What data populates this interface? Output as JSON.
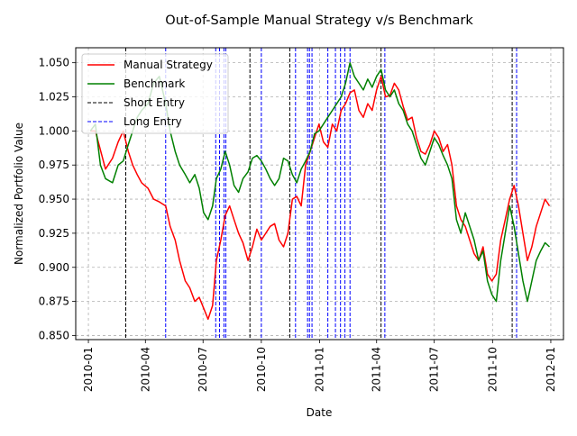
{
  "chart_data": {
    "type": "line",
    "title": "Out-of-Sample Manual Strategy v/s Benchmark",
    "xlabel": "Date",
    "ylabel": "Normalized Portfolio Value",
    "xlim": [
      "2009-12-12",
      "2012-01-21"
    ],
    "ylim": [
      0.847,
      1.061
    ],
    "grid": true,
    "legend_position": "top-left",
    "x_ticks": [
      "2010-01",
      "2010-04",
      "2010-07",
      "2010-10",
      "2011-01",
      "2011-04",
      "2011-07",
      "2011-10",
      "2012-01"
    ],
    "y_ticks": [
      "0.850",
      "0.875",
      "0.900",
      "0.925",
      "0.950",
      "0.975",
      "1.000",
      "1.025",
      "1.050"
    ],
    "colors": {
      "manual": "#ff0000",
      "benchmark": "#008000",
      "short_entry": "#000000",
      "long_entry": "#0000ff",
      "grid": "#b0b0b0"
    },
    "series": [
      {
        "name": "Manual Strategy",
        "points": [
          [
            "2010-01-04",
            1.0
          ],
          [
            "2010-01-12",
            1.0
          ],
          [
            "2010-01-20",
            0.986
          ],
          [
            "2010-01-28",
            0.972
          ],
          [
            "2010-02-08",
            0.98
          ],
          [
            "2010-02-17",
            0.992
          ],
          [
            "2010-02-25",
            1.0
          ],
          [
            "2010-03-05",
            0.985
          ],
          [
            "2010-03-12",
            0.975
          ],
          [
            "2010-03-19",
            0.968
          ],
          [
            "2010-03-26",
            0.962
          ],
          [
            "2010-04-05",
            0.958
          ],
          [
            "2010-04-14",
            0.95
          ],
          [
            "2010-04-23",
            0.948
          ],
          [
            "2010-05-03",
            0.945
          ],
          [
            "2010-05-10",
            0.93
          ],
          [
            "2010-05-18",
            0.92
          ],
          [
            "2010-05-25",
            0.905
          ],
          [
            "2010-06-03",
            0.89
          ],
          [
            "2010-06-10",
            0.885
          ],
          [
            "2010-06-18",
            0.875
          ],
          [
            "2010-06-25",
            0.878
          ],
          [
            "2010-07-02",
            0.87
          ],
          [
            "2010-07-09",
            0.862
          ],
          [
            "2010-07-16",
            0.872
          ],
          [
            "2010-07-22",
            0.905
          ],
          [
            "2010-07-29",
            0.92
          ],
          [
            "2010-08-05",
            0.938
          ],
          [
            "2010-08-12",
            0.945
          ],
          [
            "2010-08-19",
            0.935
          ],
          [
            "2010-08-26",
            0.925
          ],
          [
            "2010-09-02",
            0.918
          ],
          [
            "2010-09-10",
            0.905
          ],
          [
            "2010-09-17",
            0.915
          ],
          [
            "2010-09-24",
            0.928
          ],
          [
            "2010-10-01",
            0.92
          ],
          [
            "2010-10-08",
            0.925
          ],
          [
            "2010-10-15",
            0.93
          ],
          [
            "2010-10-22",
            0.932
          ],
          [
            "2010-10-29",
            0.92
          ],
          [
            "2010-11-05",
            0.915
          ],
          [
            "2010-11-12",
            0.925
          ],
          [
            "2010-11-19",
            0.95
          ],
          [
            "2010-11-26",
            0.952
          ],
          [
            "2010-12-03",
            0.945
          ],
          [
            "2010-12-10",
            0.975
          ],
          [
            "2010-12-17",
            0.985
          ],
          [
            "2010-12-24",
            0.995
          ],
          [
            "2010-12-31",
            1.005
          ],
          [
            "2011-01-07",
            0.992
          ],
          [
            "2011-01-14",
            0.988
          ],
          [
            "2011-01-21",
            1.005
          ],
          [
            "2011-01-28",
            1.0
          ],
          [
            "2011-02-04",
            1.015
          ],
          [
            "2011-02-11",
            1.02
          ],
          [
            "2011-02-18",
            1.028
          ],
          [
            "2011-02-25",
            1.03
          ],
          [
            "2011-03-04",
            1.015
          ],
          [
            "2011-03-11",
            1.01
          ],
          [
            "2011-03-18",
            1.02
          ],
          [
            "2011-03-25",
            1.015
          ],
          [
            "2011-04-01",
            1.03
          ],
          [
            "2011-04-08",
            1.04
          ],
          [
            "2011-04-15",
            1.025
          ],
          [
            "2011-04-22",
            1.026
          ],
          [
            "2011-04-29",
            1.035
          ],
          [
            "2011-05-06",
            1.03
          ],
          [
            "2011-05-13",
            1.018
          ],
          [
            "2011-05-20",
            1.008
          ],
          [
            "2011-05-27",
            1.01
          ],
          [
            "2011-06-03",
            0.995
          ],
          [
            "2011-06-10",
            0.985
          ],
          [
            "2011-06-17",
            0.983
          ],
          [
            "2011-06-24",
            0.99
          ],
          [
            "2011-07-01",
            1.0
          ],
          [
            "2011-07-08",
            0.995
          ],
          [
            "2011-07-15",
            0.985
          ],
          [
            "2011-07-22",
            0.99
          ],
          [
            "2011-07-29",
            0.975
          ],
          [
            "2011-08-05",
            0.945
          ],
          [
            "2011-08-12",
            0.935
          ],
          [
            "2011-08-19",
            0.93
          ],
          [
            "2011-08-26",
            0.92
          ],
          [
            "2011-09-02",
            0.91
          ],
          [
            "2011-09-09",
            0.905
          ],
          [
            "2011-09-16",
            0.915
          ],
          [
            "2011-09-23",
            0.895
          ],
          [
            "2011-09-30",
            0.89
          ],
          [
            "2011-10-07",
            0.895
          ],
          [
            "2011-10-14",
            0.92
          ],
          [
            "2011-10-21",
            0.935
          ],
          [
            "2011-10-28",
            0.95
          ],
          [
            "2011-11-04",
            0.96
          ],
          [
            "2011-11-11",
            0.945
          ],
          [
            "2011-11-18",
            0.925
          ],
          [
            "2011-11-25",
            0.905
          ],
          [
            "2011-12-02",
            0.915
          ],
          [
            "2011-12-09",
            0.93
          ],
          [
            "2011-12-16",
            0.94
          ],
          [
            "2011-12-23",
            0.95
          ],
          [
            "2011-12-30",
            0.945
          ]
        ]
      },
      {
        "name": "Benchmark",
        "points": [
          [
            "2010-01-04",
            1.0
          ],
          [
            "2010-01-12",
            1.005
          ],
          [
            "2010-01-20",
            0.975
          ],
          [
            "2010-01-28",
            0.965
          ],
          [
            "2010-02-08",
            0.962
          ],
          [
            "2010-02-17",
            0.975
          ],
          [
            "2010-02-25",
            0.978
          ],
          [
            "2010-03-05",
            0.99
          ],
          [
            "2010-03-12",
            1.0
          ],
          [
            "2010-03-19",
            1.01
          ],
          [
            "2010-03-26",
            1.015
          ],
          [
            "2010-04-05",
            1.02
          ],
          [
            "2010-04-14",
            1.035
          ],
          [
            "2010-04-23",
            1.04
          ],
          [
            "2010-05-03",
            1.02
          ],
          [
            "2010-05-10",
            1.0
          ],
          [
            "2010-05-18",
            0.985
          ],
          [
            "2010-05-25",
            0.975
          ],
          [
            "2010-06-03",
            0.968
          ],
          [
            "2010-06-10",
            0.962
          ],
          [
            "2010-06-18",
            0.968
          ],
          [
            "2010-06-25",
            0.958
          ],
          [
            "2010-07-02",
            0.94
          ],
          [
            "2010-07-09",
            0.935
          ],
          [
            "2010-07-16",
            0.945
          ],
          [
            "2010-07-22",
            0.965
          ],
          [
            "2010-07-29",
            0.972
          ],
          [
            "2010-08-05",
            0.985
          ],
          [
            "2010-08-12",
            0.975
          ],
          [
            "2010-08-19",
            0.96
          ],
          [
            "2010-08-26",
            0.955
          ],
          [
            "2010-09-02",
            0.965
          ],
          [
            "2010-09-10",
            0.97
          ],
          [
            "2010-09-17",
            0.98
          ],
          [
            "2010-09-24",
            0.982
          ],
          [
            "2010-10-01",
            0.978
          ],
          [
            "2010-10-08",
            0.972
          ],
          [
            "2010-10-15",
            0.965
          ],
          [
            "2010-10-22",
            0.96
          ],
          [
            "2010-10-29",
            0.965
          ],
          [
            "2010-11-05",
            0.98
          ],
          [
            "2010-11-12",
            0.978
          ],
          [
            "2010-11-19",
            0.968
          ],
          [
            "2010-11-26",
            0.962
          ],
          [
            "2010-12-03",
            0.972
          ],
          [
            "2010-12-10",
            0.978
          ],
          [
            "2010-12-17",
            0.985
          ],
          [
            "2010-12-24",
            0.998
          ],
          [
            "2010-12-31",
            1.0
          ],
          [
            "2011-01-07",
            1.005
          ],
          [
            "2011-01-14",
            1.01
          ],
          [
            "2011-01-21",
            1.015
          ],
          [
            "2011-01-28",
            1.02
          ],
          [
            "2011-02-04",
            1.025
          ],
          [
            "2011-02-11",
            1.035
          ],
          [
            "2011-02-18",
            1.05
          ],
          [
            "2011-02-25",
            1.04
          ],
          [
            "2011-03-04",
            1.035
          ],
          [
            "2011-03-11",
            1.03
          ],
          [
            "2011-03-18",
            1.038
          ],
          [
            "2011-03-25",
            1.032
          ],
          [
            "2011-04-01",
            1.04
          ],
          [
            "2011-04-08",
            1.045
          ],
          [
            "2011-04-15",
            1.03
          ],
          [
            "2011-04-22",
            1.025
          ],
          [
            "2011-04-29",
            1.03
          ],
          [
            "2011-05-06",
            1.02
          ],
          [
            "2011-05-13",
            1.015
          ],
          [
            "2011-05-20",
            1.005
          ],
          [
            "2011-05-27",
            1.0
          ],
          [
            "2011-06-03",
            0.99
          ],
          [
            "2011-06-10",
            0.98
          ],
          [
            "2011-06-17",
            0.975
          ],
          [
            "2011-06-24",
            0.985
          ],
          [
            "2011-07-01",
            0.995
          ],
          [
            "2011-07-08",
            0.99
          ],
          [
            "2011-07-15",
            0.982
          ],
          [
            "2011-07-22",
            0.975
          ],
          [
            "2011-07-29",
            0.965
          ],
          [
            "2011-08-05",
            0.935
          ],
          [
            "2011-08-12",
            0.925
          ],
          [
            "2011-08-19",
            0.94
          ],
          [
            "2011-08-26",
            0.93
          ],
          [
            "2011-09-02",
            0.92
          ],
          [
            "2011-09-09",
            0.905
          ],
          [
            "2011-09-16",
            0.912
          ],
          [
            "2011-09-23",
            0.89
          ],
          [
            "2011-09-30",
            0.88
          ],
          [
            "2011-10-07",
            0.875
          ],
          [
            "2011-10-14",
            0.905
          ],
          [
            "2011-10-21",
            0.925
          ],
          [
            "2011-10-28",
            0.945
          ],
          [
            "2011-11-04",
            0.93
          ],
          [
            "2011-11-11",
            0.91
          ],
          [
            "2011-11-18",
            0.89
          ],
          [
            "2011-11-25",
            0.875
          ],
          [
            "2011-12-02",
            0.89
          ],
          [
            "2011-12-09",
            0.905
          ],
          [
            "2011-12-16",
            0.912
          ],
          [
            "2011-12-23",
            0.918
          ],
          [
            "2011-12-30",
            0.915
          ]
        ]
      }
    ],
    "vlines": [
      {
        "name": "Short Entry",
        "dates": [
          "2010-03-01",
          "2010-09-13",
          "2010-11-15",
          "2011-04-08",
          "2011-11-01"
        ]
      },
      {
        "name": "Long Entry",
        "dates": [
          "2010-05-03",
          "2010-07-21",
          "2010-07-27",
          "2010-08-03",
          "2010-08-06",
          "2010-10-01",
          "2010-11-24",
          "2010-12-13",
          "2010-12-16",
          "2010-12-20",
          "2011-01-14",
          "2011-01-26",
          "2011-02-03",
          "2011-02-10",
          "2011-02-18",
          "2011-04-14",
          "2011-11-08"
        ]
      }
    ]
  }
}
